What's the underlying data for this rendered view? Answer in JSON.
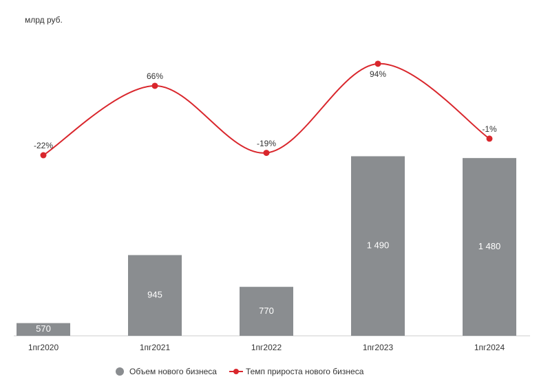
{
  "chart_data": {
    "type": "bar_line",
    "subtitle": "млрд руб.",
    "categories": [
      "1пг2020",
      "1пг2021",
      "1пг2022",
      "1пг2023",
      "1пг2024"
    ],
    "series": [
      {
        "name": "Объем нового бизнеса",
        "color": "#8a8d90",
        "type": "bar",
        "values": [
          570,
          945,
          770,
          1490,
          1480
        ],
        "value_labels": [
          "570",
          "945",
          "770",
          "1 490",
          "1 480"
        ]
      },
      {
        "name": "Темп прироста нового бизнеса",
        "color": "#d9262c",
        "type": "line",
        "axis": "y2",
        "values": [
          -22,
          66,
          -19,
          94,
          -1
        ],
        "value_labels": [
          "-22%",
          "66%",
          "-19%",
          "94%",
          "-1%"
        ]
      }
    ],
    "ylim": [
      500,
      2200
    ],
    "y2lim": [
      -251,
      140
    ],
    "legend": "bottom"
  }
}
